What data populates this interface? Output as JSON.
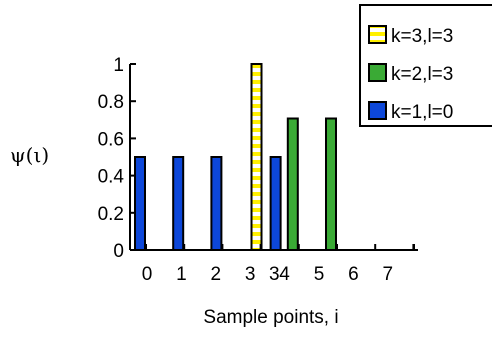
{
  "chart_data": {
    "type": "bar",
    "title": "",
    "xlabel": "Sample points, i",
    "ylabel": "ψ(ι)",
    "ylim": [
      0,
      1
    ],
    "yticks": [
      "0",
      "0.2",
      "0.4",
      "0.6",
      "0.8",
      "1"
    ],
    "xticks": [
      "0",
      "1",
      "2",
      "3",
      "3",
      "4",
      "5",
      "6",
      "7"
    ],
    "xtick_positions": [
      0,
      1,
      2,
      3,
      3.7,
      4,
      5,
      6,
      7
    ],
    "legend_position": "top-right",
    "series": [
      {
        "name": "k=3,l=3",
        "color": "#FFF000",
        "pattern": "yellow-white-stripes",
        "points": [
          {
            "x": 3,
            "y": 1.0
          }
        ]
      },
      {
        "name": "k=2,l=3",
        "color": "#3AAA35",
        "points": [
          {
            "x": 4,
            "y": 0.707
          },
          {
            "x": 5,
            "y": 0.707
          }
        ]
      },
      {
        "name": "k=1,l=0",
        "color": "#0D47D9",
        "points": [
          {
            "x": 0,
            "y": 0.5
          },
          {
            "x": 1,
            "y": 0.5
          },
          {
            "x": 2,
            "y": 0.5
          },
          {
            "x": 3,
            "y": 0.5
          }
        ]
      }
    ]
  }
}
